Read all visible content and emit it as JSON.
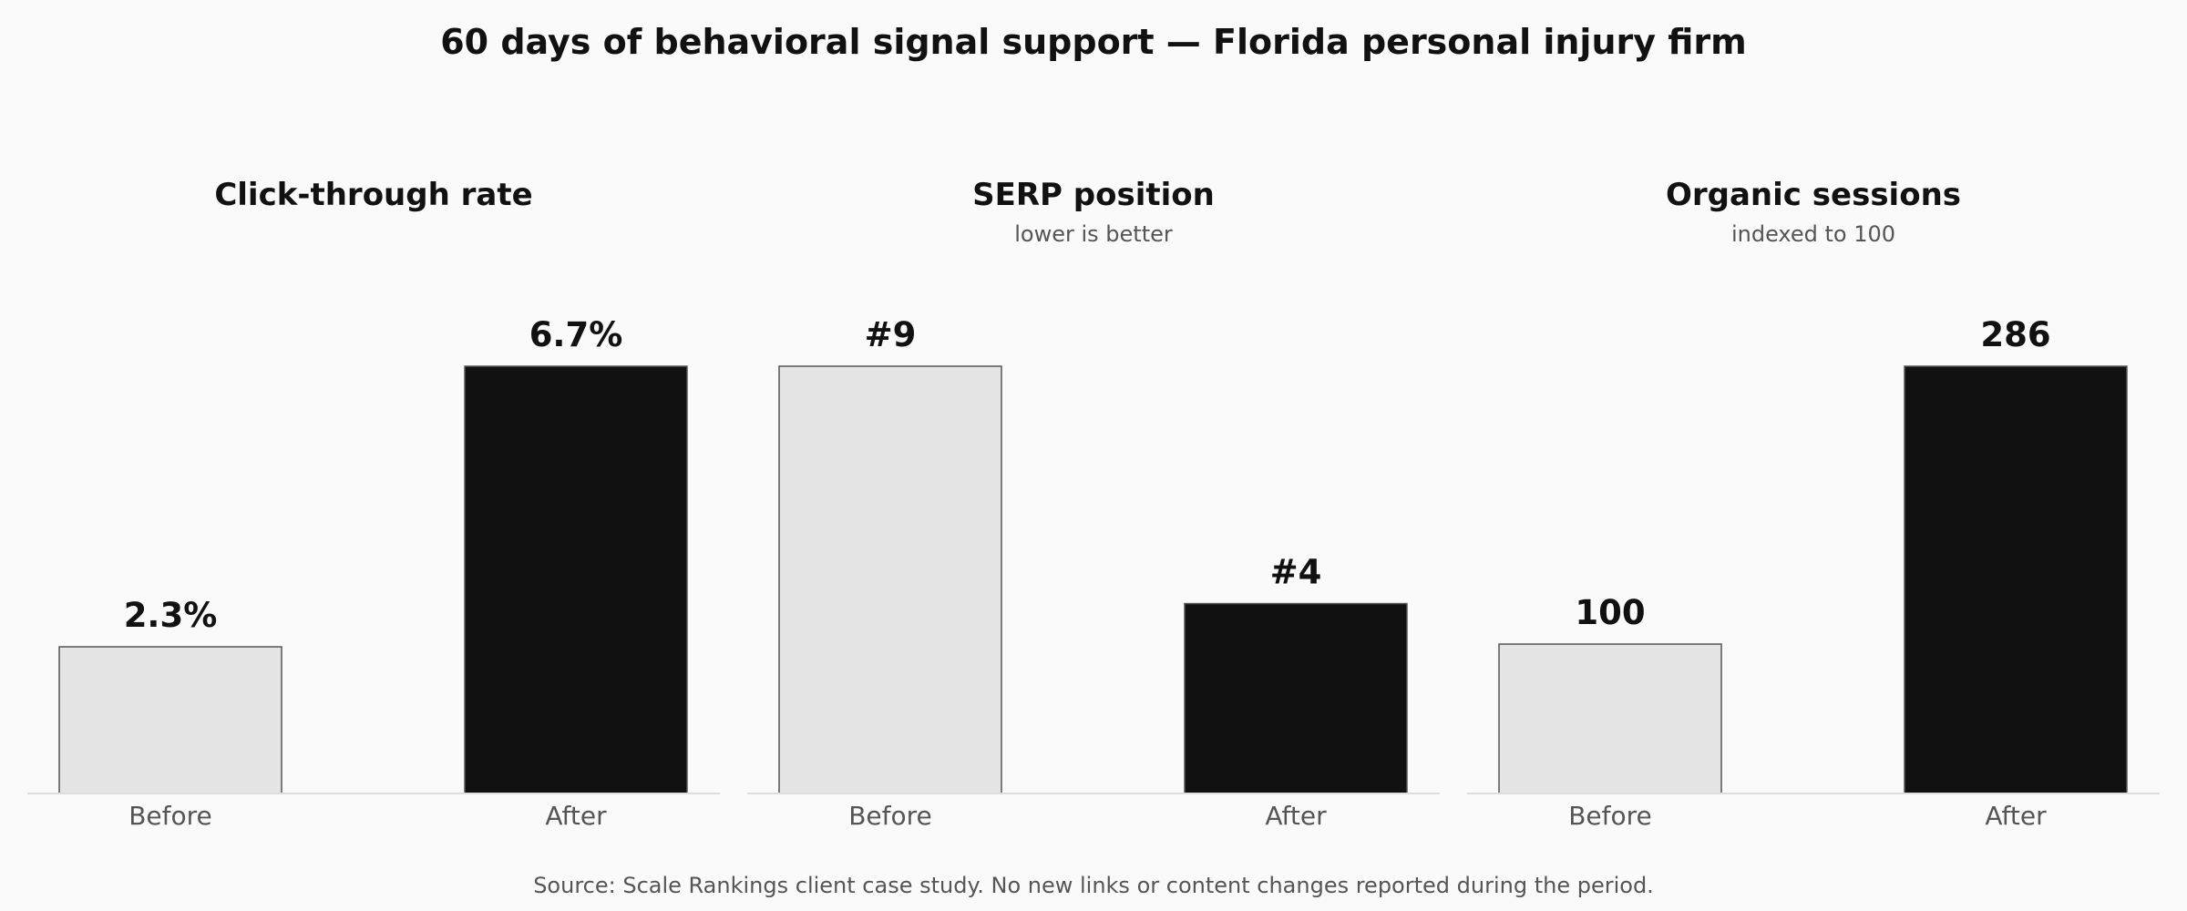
{
  "title": "60 days of behavioral signal support — Florida personal injury firm",
  "source": "Source: Scale Rankings client case study. No new links or content changes reported during the period.",
  "colors": {
    "background": "#fafafa",
    "before_bar": "#e5e5e5",
    "after_bar": "#111111",
    "bar_edge": "#555555",
    "axis": "#dddddd"
  },
  "chart_data": [
    {
      "type": "bar",
      "title": "Click-through rate",
      "subtitle": "",
      "unit": "%",
      "categories": [
        "Before",
        "After"
      ],
      "values": [
        2.3,
        6.7
      ],
      "value_labels": [
        "2.3%",
        "6.7%"
      ],
      "ylim": [
        0,
        6.7
      ]
    },
    {
      "type": "bar",
      "title": "SERP position",
      "subtitle": "lower is better",
      "categories": [
        "Before",
        "After"
      ],
      "values": [
        9,
        4
      ],
      "value_labels": [
        "#9",
        "#4"
      ],
      "ylim": [
        0,
        9
      ]
    },
    {
      "type": "bar",
      "title": "Organic sessions",
      "subtitle": "indexed to 100",
      "categories": [
        "Before",
        "After"
      ],
      "values": [
        100,
        286
      ],
      "value_labels": [
        "100",
        "286"
      ],
      "ylim": [
        0,
        286
      ]
    }
  ]
}
